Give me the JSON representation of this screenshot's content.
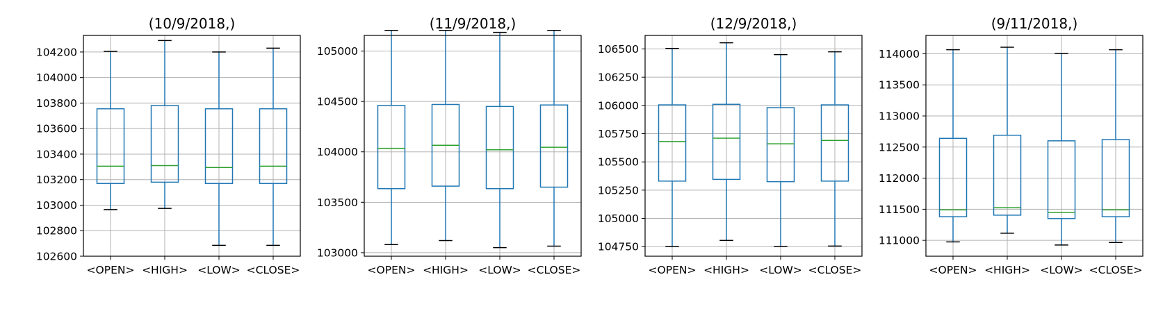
{
  "chart_data": [
    {
      "type": "box",
      "title": "(10/9/2018,)",
      "categories": [
        "<OPEN>",
        "<HIGH>",
        "<LOW>",
        "<CLOSE>"
      ],
      "ylim": [
        102600,
        104330
      ],
      "yticks": [
        102600,
        102800,
        103000,
        103200,
        103400,
        103600,
        103800,
        104000,
        104200
      ],
      "grid": true,
      "boxes": [
        {
          "whislo": 102965,
          "q1": 103170,
          "med": 103305,
          "q3": 103755,
          "whishi": 104205
        },
        {
          "whislo": 102975,
          "q1": 103180,
          "med": 103310,
          "q3": 103780,
          "whishi": 104290
        },
        {
          "whislo": 102685,
          "q1": 103170,
          "med": 103295,
          "q3": 103755,
          "whishi": 104200
        },
        {
          "whislo": 102685,
          "q1": 103170,
          "med": 103305,
          "q3": 103755,
          "whishi": 104230
        }
      ]
    },
    {
      "type": "box",
      "title": "(11/9/2018,)",
      "categories": [
        "<OPEN>",
        "<HIGH>",
        "<LOW>",
        "<CLOSE>"
      ],
      "ylim": [
        102965,
        105155
      ],
      "yticks": [
        103000,
        103500,
        104000,
        104500,
        105000
      ],
      "grid": true,
      "boxes": [
        {
          "whislo": 103080,
          "q1": 103635,
          "med": 104035,
          "q3": 104460,
          "whishi": 105205
        },
        {
          "whislo": 103120,
          "q1": 103660,
          "med": 104065,
          "q3": 104470,
          "whishi": 105205
        },
        {
          "whislo": 103050,
          "q1": 103635,
          "med": 104020,
          "q3": 104450,
          "whishi": 105185
        },
        {
          "whislo": 103065,
          "q1": 103650,
          "med": 104045,
          "q3": 104465,
          "whishi": 105205
        }
      ]
    },
    {
      "type": "box",
      "title": "(12/9/2018,)",
      "categories": [
        "<OPEN>",
        "<HIGH>",
        "<LOW>",
        "<CLOSE>"
      ],
      "ylim": [
        104665,
        106620
      ],
      "yticks": [
        104750,
        105000,
        105250,
        105500,
        105750,
        106000,
        106250,
        106500
      ],
      "grid": true,
      "boxes": [
        {
          "whislo": 104750,
          "q1": 105330,
          "med": 105680,
          "q3": 106005,
          "whishi": 106505
        },
        {
          "whislo": 104805,
          "q1": 105345,
          "med": 105710,
          "q3": 106010,
          "whishi": 106555
        },
        {
          "whislo": 104750,
          "q1": 105325,
          "med": 105660,
          "q3": 105980,
          "whishi": 106450
        },
        {
          "whislo": 104755,
          "q1": 105330,
          "med": 105690,
          "q3": 106005,
          "whishi": 106475
        }
      ]
    },
    {
      "type": "box",
      "title": "(9/11/2018,)",
      "categories": [
        "<OPEN>",
        "<HIGH>",
        "<LOW>",
        "<CLOSE>"
      ],
      "ylim": [
        110745,
        114295
      ],
      "yticks": [
        111000,
        111500,
        112000,
        112500,
        113000,
        113500,
        114000
      ],
      "grid": true,
      "boxes": [
        {
          "whislo": 110975,
          "q1": 111380,
          "med": 111490,
          "q3": 112640,
          "whishi": 114065
        },
        {
          "whislo": 111115,
          "q1": 111405,
          "med": 111525,
          "q3": 112690,
          "whishi": 114105
        },
        {
          "whislo": 110925,
          "q1": 111350,
          "med": 111450,
          "q3": 112600,
          "whishi": 114005
        },
        {
          "whislo": 110965,
          "q1": 111380,
          "med": 111490,
          "q3": 112620,
          "whishi": 114065
        }
      ]
    }
  ]
}
